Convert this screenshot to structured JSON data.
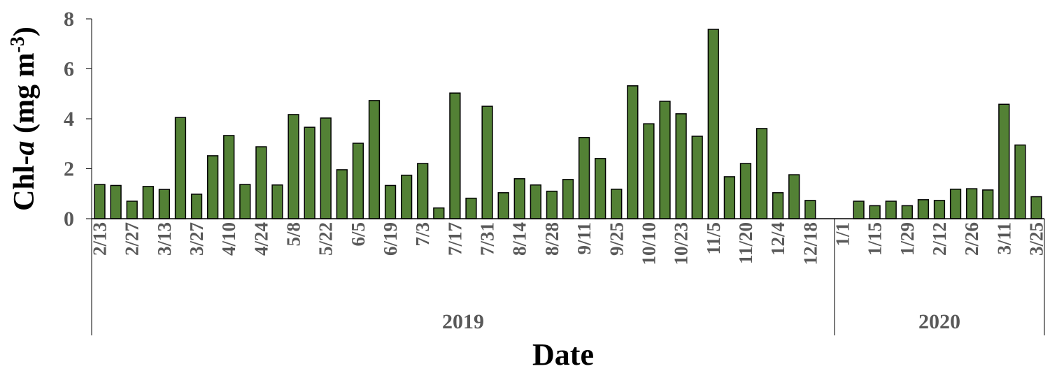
{
  "chart_data": {
    "type": "bar",
    "ylabel_parts": [
      "Chl-",
      "a",
      " (mg m",
      "-3",
      ")"
    ],
    "xlabel": "Date",
    "color": "#538135",
    "ylim": [
      0,
      8
    ],
    "yticks": [
      0,
      2,
      4,
      6,
      8
    ],
    "groups": [
      {
        "name": "2019",
        "categories": [
          "2/13",
          null,
          "2/27",
          null,
          "3/13",
          null,
          "3/27",
          null,
          "4/10",
          null,
          "4/24",
          null,
          "5/8",
          null,
          "5/22",
          null,
          "6/5",
          null,
          "6/19",
          null,
          "7/3",
          null,
          "7/17",
          null,
          "7/31",
          null,
          "8/14",
          null,
          "8/28",
          null,
          "9/11",
          null,
          "9/25",
          null,
          "10/10",
          null,
          "10/23",
          null,
          "11/5",
          null,
          "11/20",
          null,
          "12/4",
          null,
          "12/18",
          null
        ],
        "values": [
          1.37,
          1.33,
          0.7,
          1.29,
          1.17,
          4.05,
          0.98,
          2.52,
          3.33,
          1.37,
          2.88,
          1.35,
          4.17,
          3.66,
          4.03,
          1.96,
          3.02,
          4.73,
          1.33,
          1.74,
          2.21,
          0.43,
          5.03,
          0.82,
          4.5,
          1.04,
          1.6,
          1.35,
          1.1,
          1.57,
          3.25,
          2.41,
          1.18,
          5.32,
          3.8,
          4.7,
          4.2,
          3.3,
          7.58,
          1.68,
          2.21,
          3.61,
          1.04,
          1.76,
          0.73,
          null
        ]
      },
      {
        "name": "2020",
        "categories": [
          "1/1",
          null,
          "1/15",
          null,
          "1/29",
          null,
          "2/12",
          null,
          "2/26",
          null,
          "3/11",
          null,
          "3/25"
        ],
        "values": [
          null,
          0.7,
          0.52,
          0.7,
          0.52,
          0.76,
          0.73,
          1.18,
          1.2,
          1.15,
          4.58,
          2.95,
          0.88
        ]
      }
    ]
  }
}
